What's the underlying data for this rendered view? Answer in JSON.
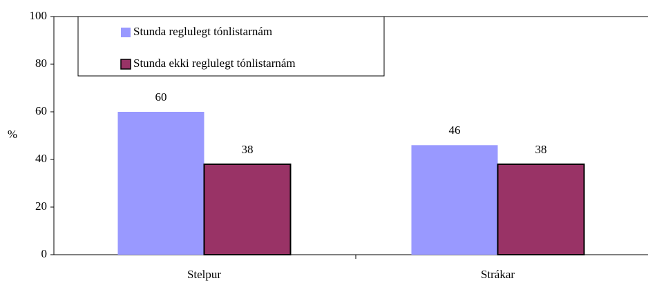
{
  "chart_data": {
    "type": "bar",
    "categories": [
      "Stelpur",
      "Strákar"
    ],
    "series": [
      {
        "name": "Stunda reglulegt tónlistarnám",
        "color": "#9999ff",
        "values": [
          60,
          46
        ]
      },
      {
        "name": "Stunda ekki reglulegt tónlistarnám",
        "color": "#993366",
        "values": [
          38,
          38
        ]
      }
    ],
    "y_label": "%",
    "ylim": [
      0,
      100
    ],
    "yticks": [
      0,
      20,
      40,
      60,
      80,
      100
    ],
    "legend": "top-left"
  }
}
